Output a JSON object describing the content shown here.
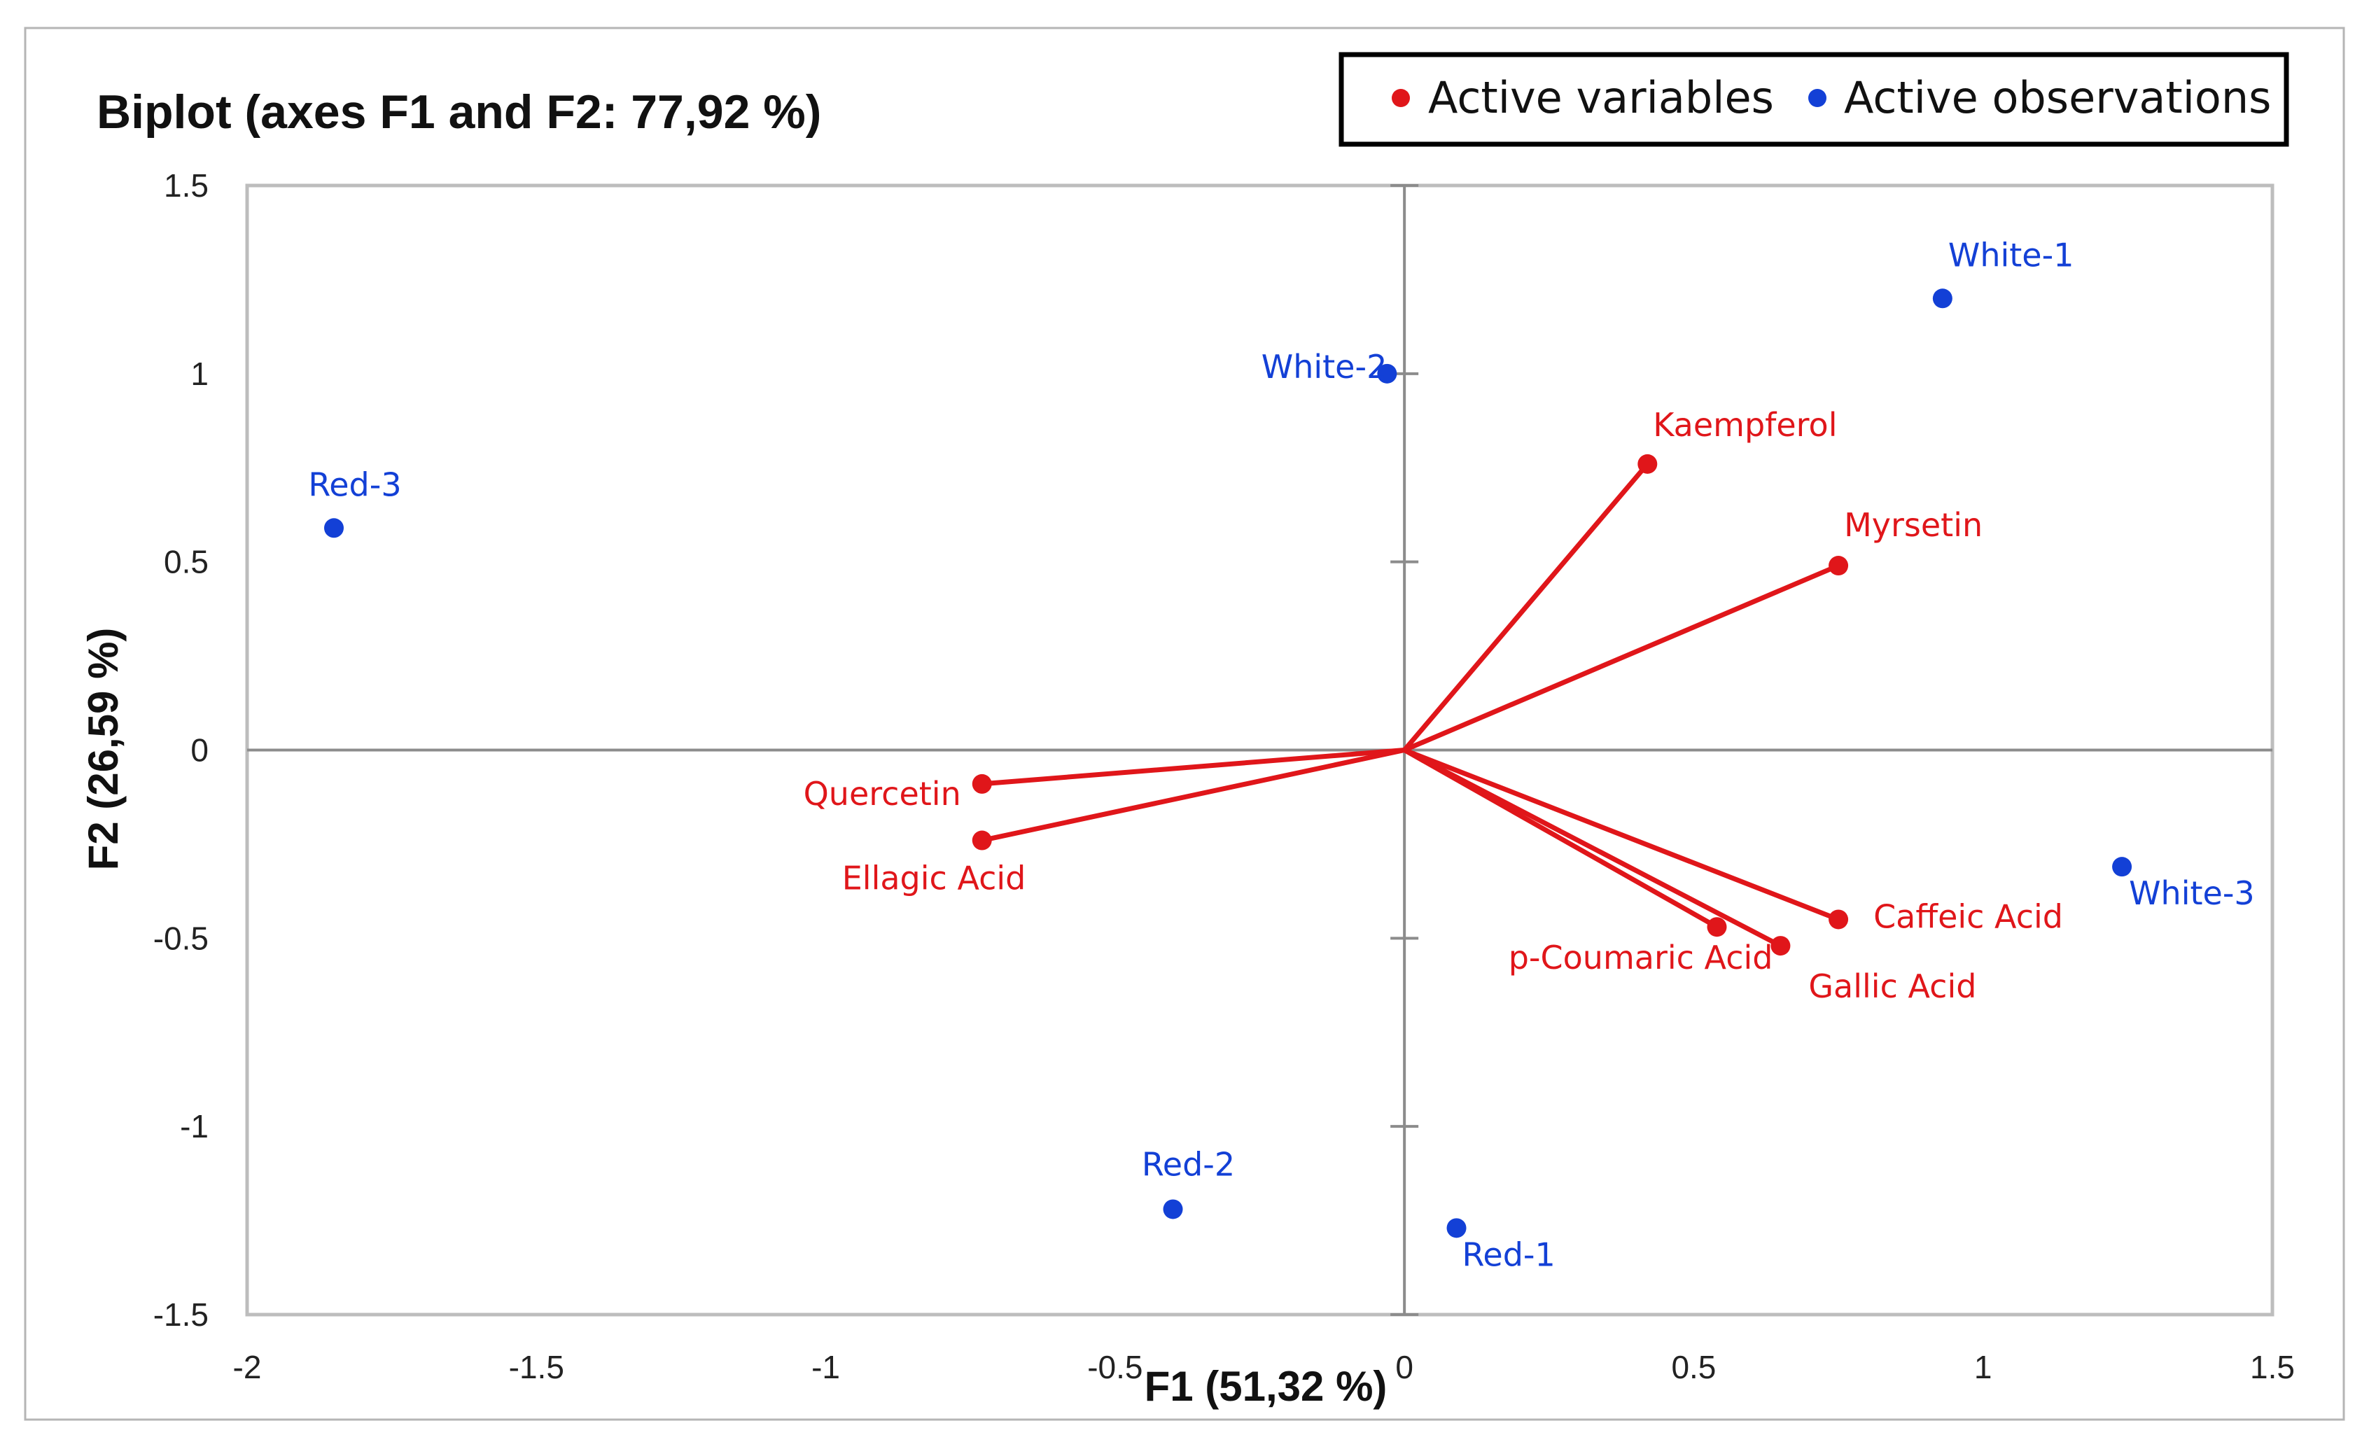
{
  "chart_data": {
    "type": "scatter",
    "title": "Biplot (axes F1 and F2: 77,92 %)",
    "xlabel": "F1 (51,32 %)",
    "ylabel": "F2 (26,59 %)",
    "xlim": [
      -2,
      1.5
    ],
    "ylim": [
      -1.5,
      1.5
    ],
    "x_ticks": [
      "-2",
      "-1.5",
      "-1",
      "-0.5",
      "0",
      "0.5",
      "1",
      "1.5"
    ],
    "y_ticks": [
      "1.5",
      "1",
      "0.5",
      "0",
      "-0.5",
      "-1",
      "-1.5"
    ],
    "grid": false,
    "legend": {
      "placement": "top-right",
      "entries": [
        {
          "name": "Active variables",
          "color": "#e0161a"
        },
        {
          "name": "Active observations",
          "color": "#1340d6"
        }
      ]
    },
    "variables": [
      {
        "name": "Kaempferol",
        "x": 0.42,
        "y": 0.76
      },
      {
        "name": "Myrsetin",
        "x": 0.75,
        "y": 0.49
      },
      {
        "name": "Quercetin",
        "x": -0.73,
        "y": -0.09
      },
      {
        "name": "Ellagic Acid",
        "x": -0.73,
        "y": -0.24
      },
      {
        "name": "Caffeic Acid",
        "x": 0.75,
        "y": -0.45
      },
      {
        "name": "p-Coumaric Acid",
        "x": 0.54,
        "y": -0.47
      },
      {
        "name": "Gallic Acid",
        "x": 0.65,
        "y": -0.52
      }
    ],
    "observations": [
      {
        "name": "White-1",
        "x": 0.93,
        "y": 1.2
      },
      {
        "name": "White-2",
        "x": -0.03,
        "y": 1.0
      },
      {
        "name": "White-3",
        "x": 1.24,
        "y": -0.31
      },
      {
        "name": "Red-1",
        "x": 0.09,
        "y": -1.27
      },
      {
        "name": "Red-2",
        "x": -0.4,
        "y": -1.22
      },
      {
        "name": "Red-3",
        "x": -1.85,
        "y": 0.59
      }
    ]
  }
}
